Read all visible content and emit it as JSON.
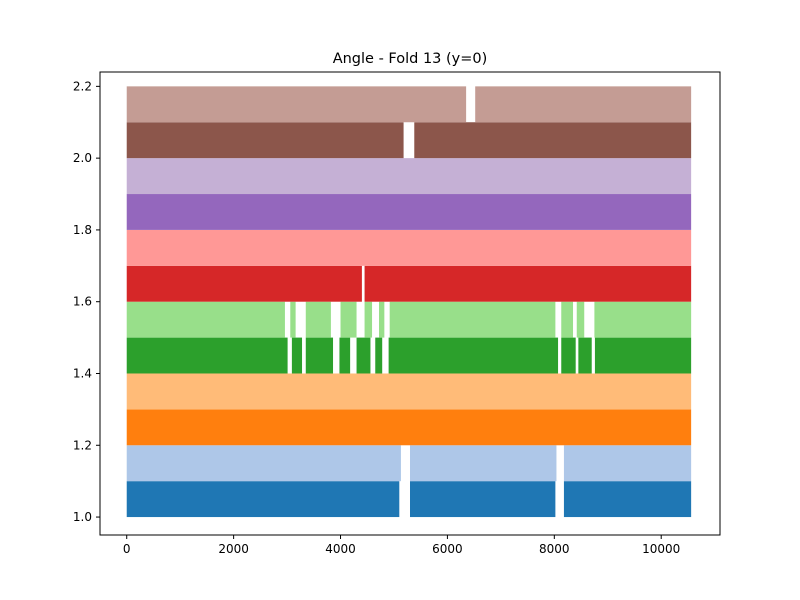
{
  "chart_data": {
    "type": "scatter",
    "title": "Angle - Fold 13 (y=0)",
    "xlabel": "",
    "ylabel": "",
    "xlim": [
      -500,
      11100
    ],
    "ylim": [
      0.95,
      2.24
    ],
    "x_ticks": [
      0,
      2000,
      4000,
      6000,
      8000,
      10000
    ],
    "x_tick_labels": [
      "0",
      "2000",
      "4000",
      "6000",
      "8000",
      "10000"
    ],
    "y_ticks": [
      1.0,
      1.2,
      1.4,
      1.6,
      1.8,
      2.0,
      2.2
    ],
    "y_tick_labels": [
      "1.0",
      "1.2",
      "1.4",
      "1.6",
      "1.8",
      "2.0",
      "2.2"
    ],
    "grid": false,
    "legend": "none",
    "point_x_range": [
      0,
      10560
    ],
    "series": [
      {
        "color": "#1f77b4",
        "y_min": 1.0,
        "y_max": 1.1,
        "gaps": [
          [
            5100,
            5300
          ],
          [
            8020,
            8180
          ]
        ]
      },
      {
        "color": "#aec7e8",
        "y_min": 1.1,
        "y_max": 1.2,
        "gaps": [
          [
            5130,
            5300
          ],
          [
            8040,
            8180
          ]
        ]
      },
      {
        "color": "#ff7f0e",
        "y_min": 1.2,
        "y_max": 1.3,
        "gaps": []
      },
      {
        "color": "#ffbb78",
        "y_min": 1.3,
        "y_max": 1.4,
        "gaps": []
      },
      {
        "color": "#2ca02c",
        "y_min": 1.4,
        "y_max": 1.5,
        "gaps": [
          [
            3010,
            3090
          ],
          [
            3280,
            3350
          ],
          [
            3860,
            3980
          ],
          [
            4180,
            4300
          ],
          [
            4560,
            4650
          ],
          [
            4780,
            4900
          ],
          [
            8070,
            8130
          ],
          [
            8400,
            8450
          ],
          [
            8700,
            8760
          ]
        ]
      },
      {
        "color": "#98df8a",
        "y_min": 1.5,
        "y_max": 1.6,
        "gaps": [
          [
            2960,
            3060
          ],
          [
            3160,
            3350
          ],
          [
            3820,
            4000
          ],
          [
            4300,
            4450
          ],
          [
            4590,
            4720
          ],
          [
            4820,
            4920
          ],
          [
            8020,
            8130
          ],
          [
            8350,
            8420
          ],
          [
            8560,
            8750
          ]
        ]
      },
      {
        "color": "#d62728",
        "y_min": 1.6,
        "y_max": 1.7,
        "gaps": [
          [
            4400,
            4450
          ]
        ]
      },
      {
        "color": "#ff9896",
        "y_min": 1.7,
        "y_max": 1.8,
        "gaps": []
      },
      {
        "color": "#9467bd",
        "y_min": 1.8,
        "y_max": 1.9,
        "gaps": []
      },
      {
        "color": "#c5b0d5",
        "y_min": 1.9,
        "y_max": 2.0,
        "gaps": []
      },
      {
        "color": "#8c564b",
        "y_min": 2.0,
        "y_max": 2.1,
        "gaps": [
          [
            5180,
            5380
          ]
        ]
      },
      {
        "color": "#c49c94",
        "y_min": 2.1,
        "y_max": 2.2,
        "gaps": [
          [
            6350,
            6520
          ]
        ]
      }
    ]
  }
}
